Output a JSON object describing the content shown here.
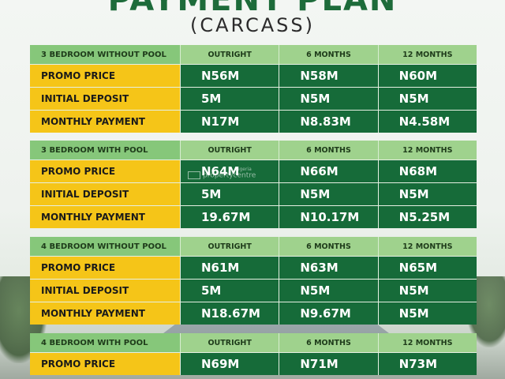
{
  "header": {
    "title": "PAYMENT PLAN",
    "subtitle": "(CARCASS)"
  },
  "columns": [
    "OUTRIGHT",
    "6 MONTHS",
    "12 MONTHS"
  ],
  "row_labels": [
    "PROMO PRICE",
    "INITIAL DEPOSIT",
    "MONTHLY PAYMENT"
  ],
  "sections": [
    {
      "name": "3 BEDROOM WITHOUT POOL",
      "rows": [
        [
          "N56M",
          "N58M",
          "N60M"
        ],
        [
          "5M",
          "N5M",
          "N5M"
        ],
        [
          "N17M",
          "N8.83M",
          "N4.58M"
        ]
      ]
    },
    {
      "name": "3 BEDROOM WITH POOL",
      "rows": [
        [
          "N64M",
          "N66M",
          "N68M"
        ],
        [
          "5M",
          "N5M",
          "N5M"
        ],
        [
          "19.67M",
          "N10.17M",
          "N5.25M"
        ]
      ]
    },
    {
      "name": "4 BEDROOM WITHOUT POOL",
      "rows": [
        [
          "N61M",
          "N63M",
          "N65M"
        ],
        [
          "5M",
          "N5M",
          "N5M"
        ],
        [
          "N18.67M",
          "N9.67M",
          "N5M"
        ]
      ]
    },
    {
      "name": "4 BEDROOM WITH POOL",
      "rows": [
        [
          "N69M",
          "N71M",
          "N73M"
        ]
      ]
    }
  ],
  "watermark": {
    "small": "nigeria",
    "text": "propertycentre"
  },
  "colors": {
    "title": "#1d6b3a",
    "header_label": "#86c77a",
    "header_col": "#9fd28d",
    "row_label": "#f5c518",
    "cell": "#166b39"
  }
}
